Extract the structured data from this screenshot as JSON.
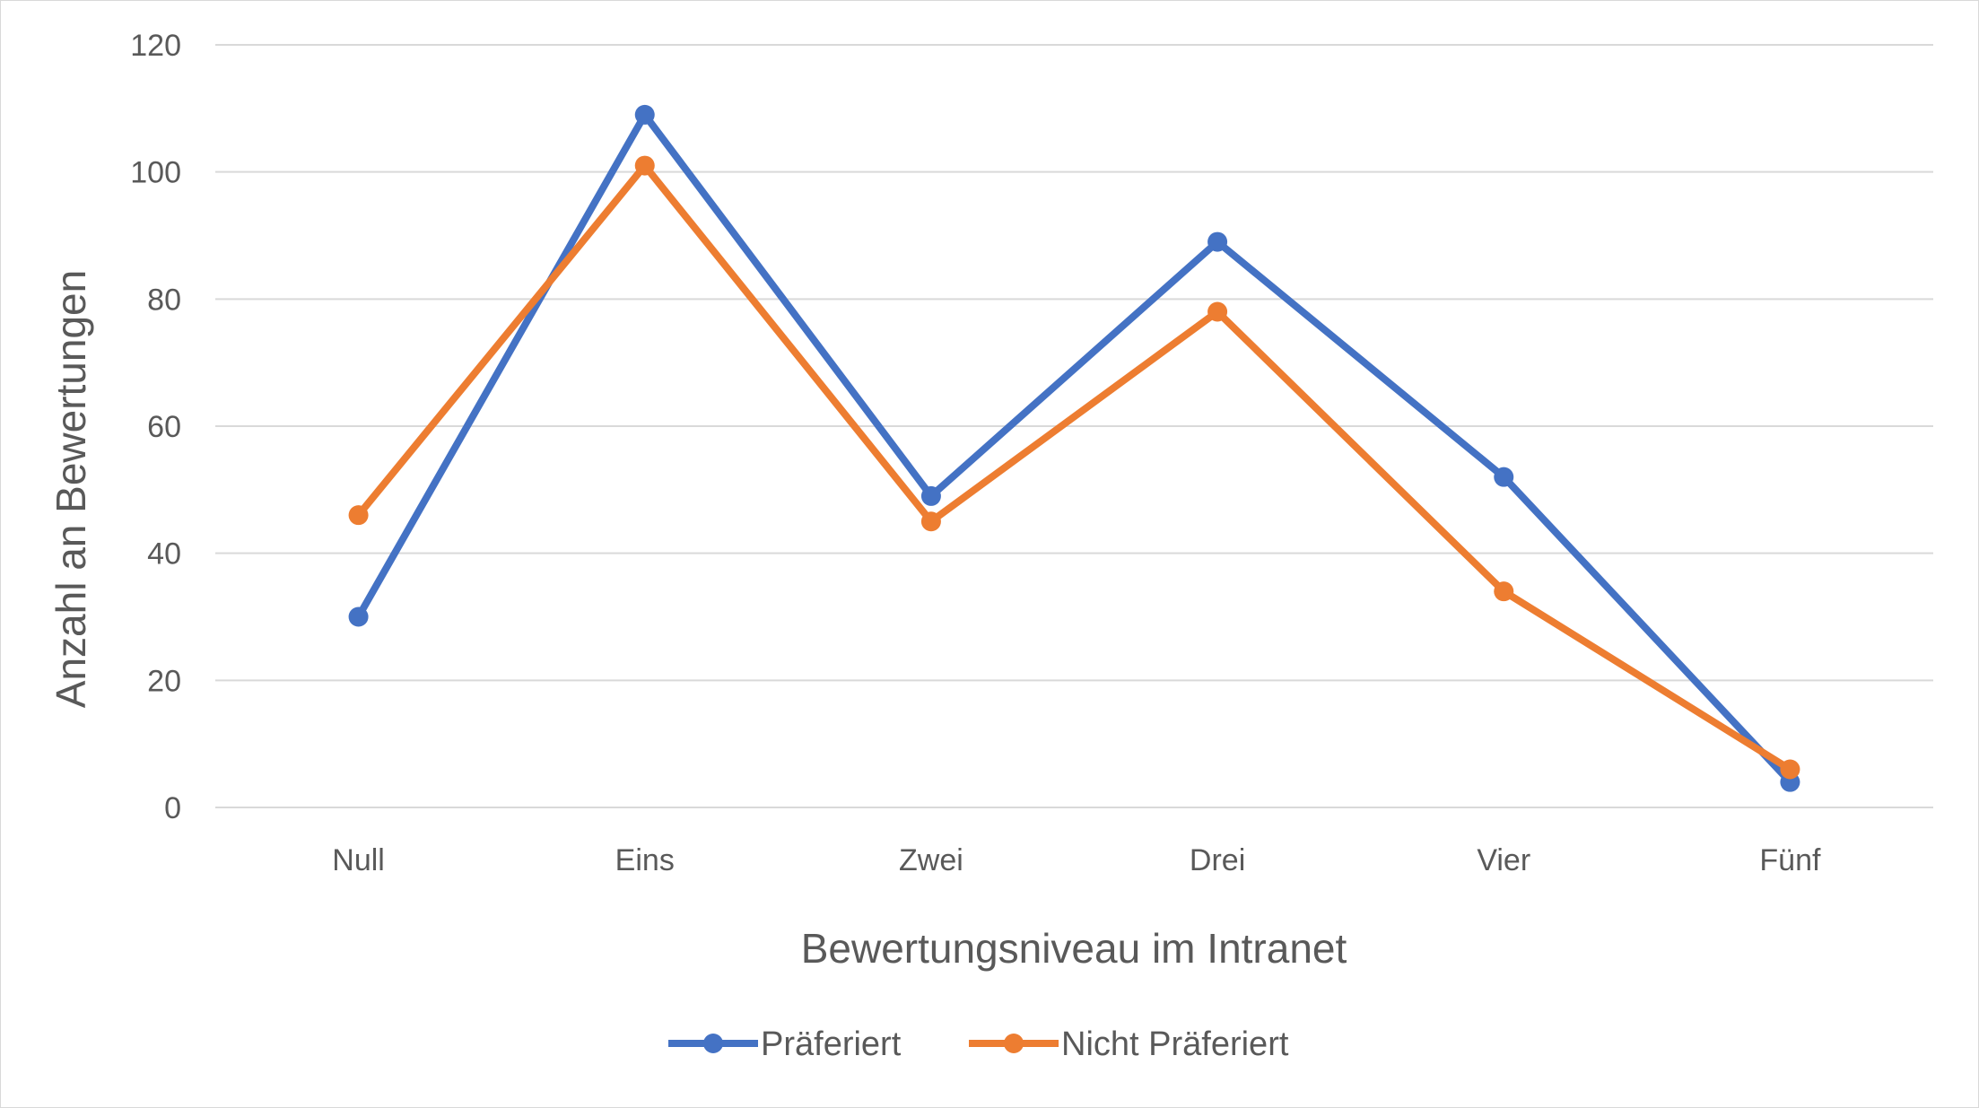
{
  "chart_data": {
    "type": "line",
    "categories": [
      "Null",
      "Eins",
      "Zwei",
      "Drei",
      "Vier",
      "Fünf"
    ],
    "series": [
      {
        "name": "Präferiert",
        "values": [
          30,
          109,
          49,
          89,
          52,
          4
        ],
        "color": "#4472C4"
      },
      {
        "name": "Nicht Präferiert",
        "values": [
          46,
          101,
          45,
          78,
          34,
          6
        ],
        "color": "#ED7D31"
      }
    ],
    "xlabel": "Bewertungsniveau im Intranet",
    "ylabel": "Anzahl an Bewertungen",
    "ylim": [
      0,
      120
    ],
    "yticks": [
      0,
      20,
      40,
      60,
      80,
      100,
      120
    ],
    "grid": true,
    "legend": "bottom"
  }
}
